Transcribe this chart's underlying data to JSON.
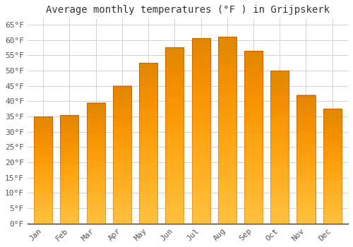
{
  "title": "Average monthly temperatures (°F ) in Grijpskerk",
  "months": [
    "Jan",
    "Feb",
    "Mar",
    "Apr",
    "May",
    "Jun",
    "Jul",
    "Aug",
    "Sep",
    "Oct",
    "Nov",
    "Dec"
  ],
  "values": [
    35,
    35.5,
    39.5,
    45,
    52.5,
    57.5,
    60.5,
    61,
    56.5,
    50,
    42,
    37.5
  ],
  "bar_color": "#FFB300",
  "bar_edge_color": "#E08000",
  "background_color": "#FFFFFF",
  "plot_bg_color": "#FFFFFF",
  "grid_color": "#CCCCCC",
  "ytick_labels": [
    "0°F",
    "5°F",
    "10°F",
    "15°F",
    "20°F",
    "25°F",
    "30°F",
    "35°F",
    "40°F",
    "45°F",
    "50°F",
    "55°F",
    "60°F",
    "65°F"
  ],
  "ytick_values": [
    0,
    5,
    10,
    15,
    20,
    25,
    30,
    35,
    40,
    45,
    50,
    55,
    60,
    65
  ],
  "ylim": [
    0,
    67
  ],
  "title_fontsize": 10,
  "tick_fontsize": 8,
  "font_family": "monospace"
}
